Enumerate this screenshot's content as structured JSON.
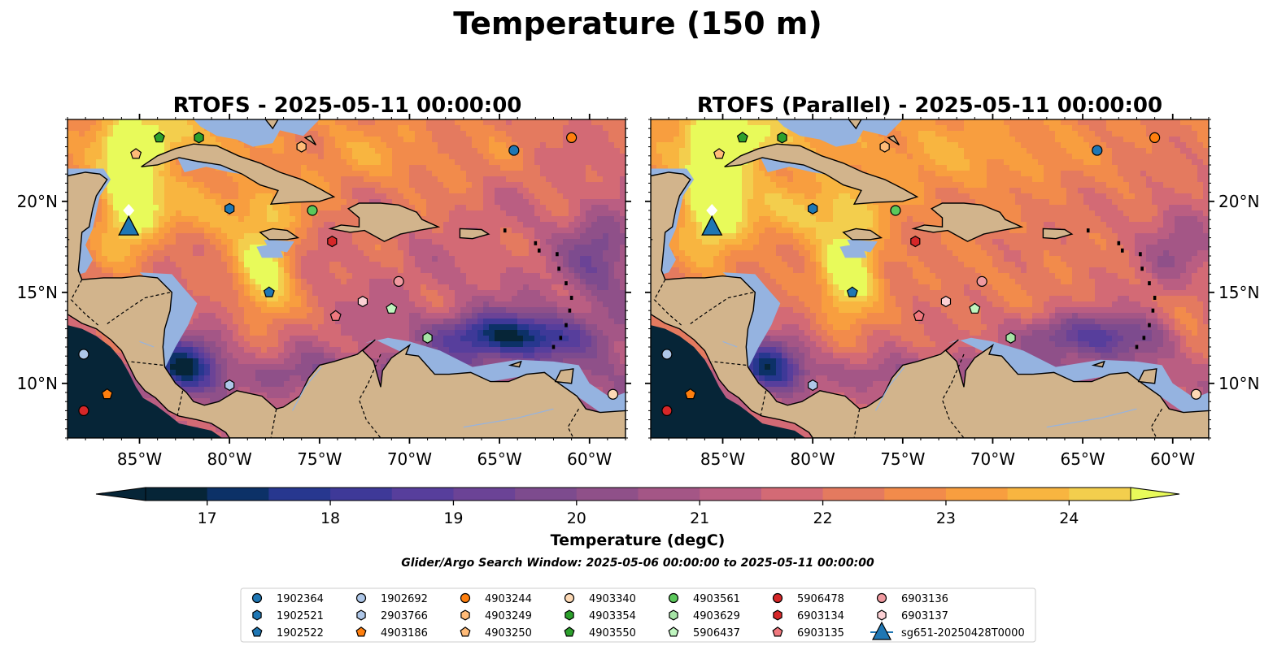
{
  "figure": {
    "suptitle": "Temperature (150 m)",
    "window_text": "Glider/Argo Search Window: 2025-05-06 00:00:00 to 2025-05-11 00:00:00"
  },
  "panels": [
    {
      "title": "RTOFS - 2025-05-11 00:00:00",
      "variant": "rtofs"
    },
    {
      "title": "RTOFS (Parallel) - 2025-05-11 00:00:00",
      "variant": "parallel"
    }
  ],
  "map": {
    "lon_range": [
      -89,
      -58
    ],
    "lat_range": [
      7,
      24.5
    ],
    "lon_ticks": [
      -85,
      -80,
      -75,
      -70,
      -65,
      -60
    ],
    "lon_tick_labels": [
      "85°W",
      "80°W",
      "75°W",
      "70°W",
      "65°W",
      "60°W"
    ],
    "lat_ticks": [
      10,
      15,
      20
    ],
    "lat_tick_labels": [
      "10°N",
      "15°N",
      "20°N"
    ],
    "land_color": "#d2b48c",
    "shelf_color": "#95b3e0",
    "pacific_color": "#062537"
  },
  "colorbar": {
    "label": "Temperature (degC)",
    "ticks": [
      "17",
      "18",
      "19",
      "20",
      "21",
      "22",
      "23",
      "24"
    ],
    "min": 16.5,
    "max": 24.5,
    "colors": [
      "#062537",
      "#0c3167",
      "#27378f",
      "#3e3998",
      "#573e9c",
      "#6b4396",
      "#7d4b8e",
      "#8f5089",
      "#a45686",
      "#ba5e82",
      "#d36a75",
      "#e47a5f",
      "#f28b4b",
      "#f89e3f",
      "#f8b540",
      "#f3ce4d"
    ],
    "under_color": "#062537",
    "over_color": "#e8fa5a"
  },
  "profiles": [
    {
      "id": "1902364",
      "color": "#1f77b4",
      "marker": "circle",
      "lon": -64.2,
      "lat": 22.8
    },
    {
      "id": "1902521",
      "color": "#1f77b4",
      "marker": "hexagon",
      "lon": -80.0,
      "lat": 19.6
    },
    {
      "id": "1902522",
      "color": "#1f77b4",
      "marker": "pentagon",
      "lon": -77.8,
      "lat": 15.0
    },
    {
      "id": "1902692",
      "color": "#aec7e8",
      "marker": "circle",
      "lon": -88.1,
      "lat": 11.6
    },
    {
      "id": "2903766",
      "color": "#aec7e8",
      "marker": "hexagon",
      "lon": -80.0,
      "lat": 9.9
    },
    {
      "id": "4903186",
      "color": "#ff7f0e",
      "marker": "pentagon",
      "lon": -86.8,
      "lat": 9.4
    },
    {
      "id": "4903244",
      "color": "#ff7f0e",
      "marker": "circle",
      "lon": -61.0,
      "lat": 23.5
    },
    {
      "id": "4903249",
      "color": "#ffbb78",
      "marker": "hexagon",
      "lon": -76.0,
      "lat": 23.0
    },
    {
      "id": "4903250",
      "color": "#ffbb78",
      "marker": "pentagon",
      "lon": -85.2,
      "lat": 22.6
    },
    {
      "id": "4903340",
      "color": "#fdd9b5",
      "marker": "circle",
      "lon": -58.7,
      "lat": 9.4
    },
    {
      "id": "4903354",
      "color": "#2ca02c",
      "marker": "hexagon",
      "lon": -81.7,
      "lat": 23.5
    },
    {
      "id": "4903550",
      "color": "#2ca02c",
      "marker": "pentagon",
      "lon": -83.9,
      "lat": 23.5
    },
    {
      "id": "4903561",
      "color": "#5bc85b",
      "marker": "circle",
      "lon": -75.4,
      "lat": 19.5
    },
    {
      "id": "4903629",
      "color": "#a6e4a6",
      "marker": "hexagon",
      "lon": -69.0,
      "lat": 12.5
    },
    {
      "id": "5906437",
      "color": "#bff5bf",
      "marker": "pentagon",
      "lon": -71.0,
      "lat": 14.1
    },
    {
      "id": "5906478",
      "color": "#d62728",
      "marker": "circle",
      "lon": -88.1,
      "lat": 8.5
    },
    {
      "id": "6903134",
      "color": "#d62728",
      "marker": "hexagon",
      "lon": -74.3,
      "lat": 17.8
    },
    {
      "id": "6903135",
      "color": "#f0787e",
      "marker": "pentagon",
      "lon": -74.1,
      "lat": 13.7
    },
    {
      "id": "6903136",
      "color": "#f09aa0",
      "marker": "circle",
      "lon": -70.6,
      "lat": 15.6
    },
    {
      "id": "6903137",
      "color": "#fcd0d4",
      "marker": "hexagon",
      "lon": -72.6,
      "lat": 14.5
    }
  ],
  "glider": {
    "id": "sg651-20250428T0000",
    "color": "#1f77b4",
    "lon": -85.6,
    "lat": 18.6,
    "track_lat": 19.5
  },
  "legend_columns": [
    [
      "1902364",
      "1902521",
      "1902522"
    ],
    [
      "1902692",
      "2903766",
      "4903186"
    ],
    [
      "4903244",
      "4903249",
      "4903250"
    ],
    [
      "4903340",
      "4903354",
      "4903550"
    ],
    [
      "4903561",
      "4903629",
      "5906437"
    ],
    [
      "5906478",
      "6903134",
      "6903135"
    ],
    [
      "6903136",
      "6903137",
      "sg651-20250428T0000"
    ]
  ]
}
